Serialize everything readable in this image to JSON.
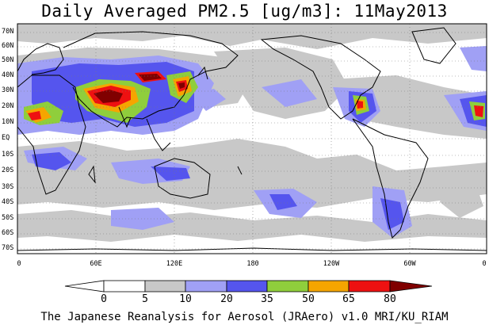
{
  "title": "Daily Averaged PM2.5 [ug/m3]: 11May2013",
  "footer": "The Japanese Reanalysis for Aerosol (JRAero) v1.0 MRI/KU_RIAM",
  "map": {
    "lat_labels": [
      "70N",
      "60N",
      "50N",
      "40N",
      "30N",
      "20N",
      "10N",
      "EQ",
      "10S",
      "20S",
      "30S",
      "40S",
      "50S",
      "60S",
      "70S"
    ],
    "lon_labels": [
      "0",
      "60E",
      "120E",
      "180",
      "120W",
      "60W",
      "0"
    ]
  },
  "colorbar": {
    "ticks": [
      "0",
      "5",
      "10",
      "20",
      "35",
      "50",
      "65",
      "80"
    ],
    "colors": [
      "#ffffff",
      "#c8c8c8",
      "#a0a0f5",
      "#5555ee",
      "#8fce3c",
      "#f5a500",
      "#ee1111",
      "#800000"
    ]
  }
}
